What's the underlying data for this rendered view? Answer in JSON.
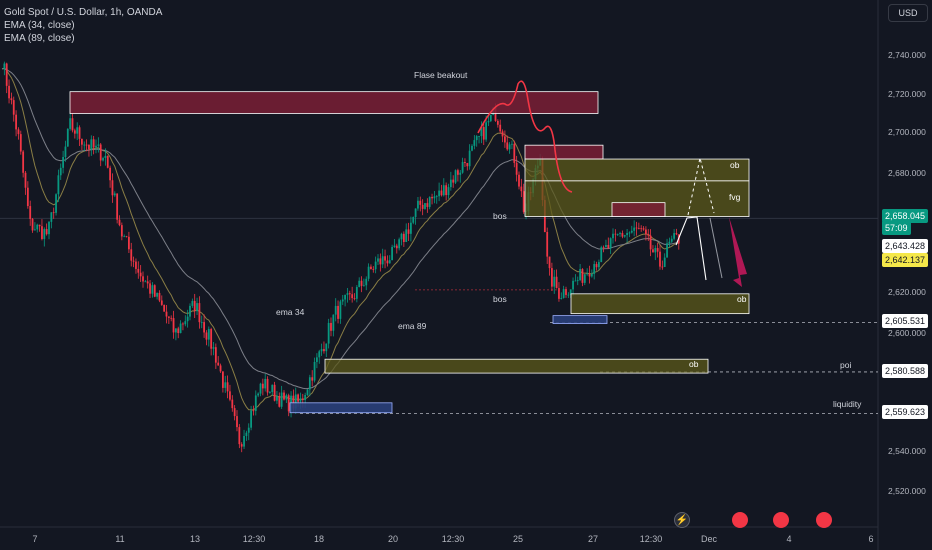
{
  "header": {
    "symbol_line": "Gold Spot / U.S. Dollar, 1h, OANDA",
    "indicators": [
      "EMA (34, close)",
      "EMA (89, close)"
    ],
    "currency": "USD"
  },
  "colors": {
    "background": "#131722",
    "up": "#089981",
    "down": "#f23645",
    "ema34": "#8a7e45",
    "ema89": "#7c7f88",
    "supply_zone": "#7a1f35",
    "demand_zone": "#5c5a1a",
    "liquidity_box": "#2a3f7a",
    "drawing_white": "#ffffff",
    "drawing_red": "#f23645",
    "arrow_red": "#c2185b"
  },
  "price_tags": [
    {
      "label": "2,658.045",
      "style": "green"
    },
    {
      "label": "2,643.428",
      "style": "white"
    },
    {
      "label": "2,642.137",
      "style": "yellow"
    },
    {
      "label": "2,605.531",
      "style": "white"
    },
    {
      "label": "2,580.588",
      "style": "white"
    },
    {
      "label": "2,559.623",
      "style": "white"
    }
  ],
  "countdown": "57:09",
  "annotations": {
    "false_breakout": "Flase beakout",
    "bos_upper": "bos",
    "bos_lower": "bos",
    "ema34": "ema 34",
    "ema89": "ema 89",
    "ob_upper": "ob",
    "fvg": "fvg",
    "ob_middle": "ob",
    "ob_lower": "ob",
    "poi": "poi",
    "liquidity": "liquidity"
  },
  "event_icons": [
    "lightning-event-icon",
    "us-flag-event-icon",
    "us-flag-event-icon",
    "us-flag-event-icon"
  ],
  "chart_data": {
    "type": "candlestick",
    "title": "Gold Spot / U.S. Dollar, 1h, OANDA",
    "y_axis": {
      "min": 2520,
      "max": 2750,
      "ticks": [
        "2,740.000",
        "2,720.000",
        "2,700.000",
        "2,680.000",
        "2,620.000",
        "2,600.000",
        "2,540.000",
        "2,520.000"
      ]
    },
    "x_axis": {
      "ticks": [
        "7",
        "11",
        "13",
        "12:30",
        "18",
        "20",
        "12:30",
        "25",
        "27",
        "12:30",
        "Dec",
        "4",
        "6"
      ]
    },
    "path_points": [
      [
        "start",
        2738
      ],
      [
        "a",
        2700
      ],
      [
        "b",
        2655
      ],
      [
        "c",
        2650
      ],
      [
        "d",
        2705
      ],
      [
        "e",
        2695
      ],
      [
        "f",
        2690
      ],
      [
        "g",
        2650
      ],
      [
        "h",
        2630
      ],
      [
        "i",
        2615
      ],
      [
        "j",
        2600
      ],
      [
        "k",
        2615
      ],
      [
        "l",
        2590
      ],
      [
        "m",
        2545
      ],
      [
        "n",
        2575
      ],
      [
        "o",
        2565
      ],
      [
        "p",
        2565
      ],
      [
        "q",
        2590
      ],
      [
        "r",
        2610
      ],
      [
        "s",
        2620
      ],
      [
        "t",
        2635
      ],
      [
        "u",
        2640
      ],
      [
        "v",
        2665
      ],
      [
        "w",
        2670
      ],
      [
        "x",
        2690
      ],
      [
        "y",
        2712
      ],
      [
        "z",
        2688
      ],
      [
        "aa",
        2660
      ],
      [
        "ab",
        2690
      ],
      [
        "ac",
        2630
      ],
      [
        "ad",
        2620
      ],
      [
        "ae",
        2628
      ],
      [
        "af",
        2650
      ],
      [
        "ag",
        2652
      ],
      [
        "ah",
        2635
      ],
      [
        "ai",
        2645
      ],
      [
        "aj",
        2648
      ],
      [
        "ak",
        2643
      ]
    ],
    "zones": [
      {
        "label": "Flase beakout",
        "kind": "supply",
        "y_top": 2722,
        "y_bottom": 2711
      },
      {
        "label": "",
        "kind": "supply",
        "y_top": 2695,
        "y_bottom": 2688
      },
      {
        "label": "ob",
        "kind": "demand",
        "y_top": 2688,
        "y_bottom": 2677
      },
      {
        "label": "fvg",
        "kind": "demand",
        "y_top": 2677,
        "y_bottom": 2659
      },
      {
        "label": "",
        "kind": "supply",
        "y_top": 2666,
        "y_bottom": 2659
      },
      {
        "label": "ob",
        "kind": "demand",
        "y_top": 2620,
        "y_bottom": 2610
      },
      {
        "label": "",
        "kind": "liquidity",
        "y_top": 2609,
        "y_bottom": 2605
      },
      {
        "label": "ob",
        "kind": "demand",
        "y_top": 2587,
        "y_bottom": 2580
      },
      {
        "label": "",
        "kind": "liquidity",
        "y_top": 2565,
        "y_bottom": 2560
      }
    ],
    "levels": [
      2658.045,
      2605.531,
      2580.588,
      2559.623
    ],
    "legend": [
      "EMA (34, close)",
      "EMA (89, close)"
    ]
  }
}
